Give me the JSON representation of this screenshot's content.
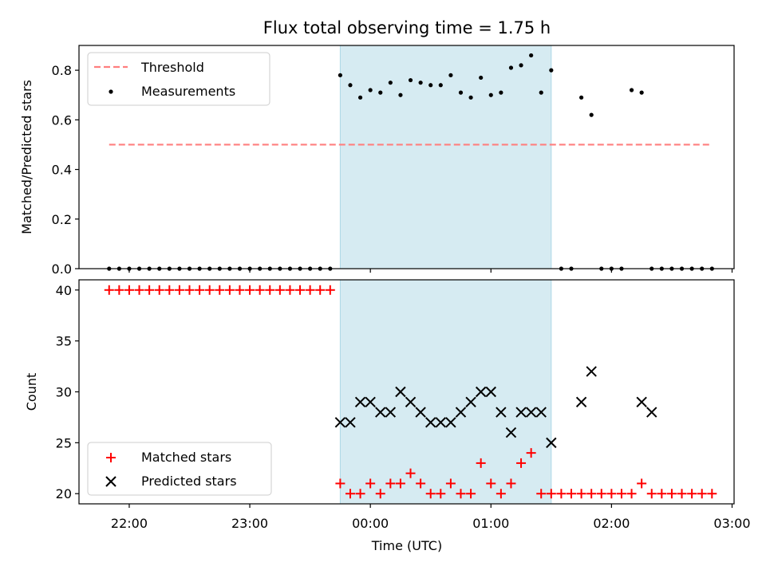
{
  "chart_data": [
    {
      "type": "scatter",
      "title": "Flux total observing time = 1.75 h",
      "xlabel": "",
      "ylabel": "Matched/Predicted stars",
      "ylim": [
        0,
        0.9
      ],
      "yticks": [
        "0.0",
        "0.2",
        "0.4",
        "0.6",
        "0.8"
      ],
      "grid": false,
      "legend": "top-left",
      "shaded_interval": {
        "start": "23:45",
        "end": "01:30",
        "color": "#add8e6"
      },
      "series": [
        {
          "name": "Threshold",
          "style": "dashed-line",
          "color": "#ff7f7f",
          "x": [
            "21:50",
            "02:50"
          ],
          "values": [
            0.5,
            0.5
          ]
        },
        {
          "name": "Measurements",
          "style": "dot",
          "color": "#000000",
          "x": [
            "21:50",
            "21:55",
            "22:00",
            "22:05",
            "22:10",
            "22:15",
            "22:20",
            "22:25",
            "22:30",
            "22:35",
            "22:40",
            "22:45",
            "22:50",
            "22:55",
            "23:00",
            "23:05",
            "23:10",
            "23:15",
            "23:20",
            "23:25",
            "23:30",
            "23:35",
            "23:40",
            "23:45",
            "23:50",
            "23:55",
            "00:00",
            "00:05",
            "00:10",
            "00:15",
            "00:20",
            "00:25",
            "00:30",
            "00:35",
            "00:40",
            "00:45",
            "00:50",
            "00:55",
            "01:00",
            "01:05",
            "01:10",
            "01:15",
            "01:20",
            "01:25",
            "01:30",
            "01:35",
            "01:40",
            "01:45",
            "01:50",
            "01:55",
            "02:00",
            "02:05",
            "02:10",
            "02:15",
            "02:20",
            "02:25",
            "02:30",
            "02:35",
            "02:40",
            "02:45",
            "02:50"
          ],
          "values": [
            0,
            0,
            0,
            0,
            0,
            0,
            0,
            0,
            0,
            0,
            0,
            0,
            0,
            0,
            0,
            0,
            0,
            0,
            0,
            0,
            0,
            0,
            0,
            0.78,
            0.74,
            0.69,
            0.72,
            0.71,
            0.75,
            0.7,
            0.76,
            0.75,
            0.74,
            0.74,
            0.78,
            0.71,
            0.69,
            0.77,
            0.7,
            0.71,
            0.81,
            0.82,
            0.86,
            0.71,
            0.8,
            0,
            0,
            0.69,
            0.62,
            0,
            0,
            0,
            0.72,
            0.71,
            0,
            0,
            0,
            0,
            0,
            0,
            0
          ]
        }
      ]
    },
    {
      "type": "scatter",
      "title": "",
      "xlabel": "Time (UTC)",
      "ylabel": "Count",
      "ylim": [
        19.0,
        41.0
      ],
      "yticks": [
        "20",
        "25",
        "30",
        "35",
        "40"
      ],
      "xlim": [
        "21:35",
        "03:01"
      ],
      "xticks": [
        "22:00",
        "23:00",
        "00:00",
        "01:00",
        "02:00",
        "03:00"
      ],
      "grid": false,
      "legend": "bottom-left",
      "shaded_interval": {
        "start": "23:45",
        "end": "01:30",
        "color": "#add8e6"
      },
      "series": [
        {
          "name": "Matched stars",
          "marker": "+",
          "color": "#ff0000",
          "x": [
            "21:50",
            "21:55",
            "22:00",
            "22:05",
            "22:10",
            "22:15",
            "22:20",
            "22:25",
            "22:30",
            "22:35",
            "22:40",
            "22:45",
            "22:50",
            "22:55",
            "23:00",
            "23:05",
            "23:10",
            "23:15",
            "23:20",
            "23:25",
            "23:30",
            "23:35",
            "23:40",
            "23:45",
            "23:50",
            "23:55",
            "00:00",
            "00:05",
            "00:10",
            "00:15",
            "00:20",
            "00:25",
            "00:30",
            "00:35",
            "00:40",
            "00:45",
            "00:50",
            "00:55",
            "01:00",
            "01:05",
            "01:10",
            "01:15",
            "01:20",
            "01:25",
            "01:30",
            "01:35",
            "01:40",
            "01:45",
            "01:50",
            "01:55",
            "02:00",
            "02:05",
            "02:10",
            "02:15",
            "02:20",
            "02:25",
            "02:30",
            "02:35",
            "02:40",
            "02:45",
            "02:50"
          ],
          "values": [
            40,
            40,
            40,
            40,
            40,
            40,
            40,
            40,
            40,
            40,
            40,
            40,
            40,
            40,
            40,
            40,
            40,
            40,
            40,
            40,
            40,
            40,
            40,
            21,
            20,
            20,
            21,
            20,
            21,
            21,
            22,
            21,
            20,
            20,
            21,
            20,
            20,
            23,
            21,
            20,
            21,
            23,
            24,
            20,
            20,
            20,
            20,
            20,
            20,
            20,
            20,
            20,
            20,
            21,
            20,
            20,
            20,
            20,
            20,
            20,
            20
          ]
        },
        {
          "name": "Predicted stars",
          "marker": "x",
          "color": "#000000",
          "x": [
            "23:45",
            "23:50",
            "23:55",
            "00:00",
            "00:05",
            "00:10",
            "00:15",
            "00:20",
            "00:25",
            "00:30",
            "00:35",
            "00:40",
            "00:45",
            "00:50",
            "00:55",
            "01:00",
            "01:05",
            "01:10",
            "01:15",
            "01:20",
            "01:25",
            "01:30",
            "01:45",
            "01:50",
            "02:15",
            "02:20"
          ],
          "values": [
            27,
            27,
            29,
            29,
            28,
            28,
            30,
            29,
            28,
            27,
            27,
            27,
            28,
            29,
            30,
            30,
            28,
            26,
            28,
            28,
            28,
            25,
            29,
            32,
            29,
            28
          ]
        }
      ]
    }
  ]
}
